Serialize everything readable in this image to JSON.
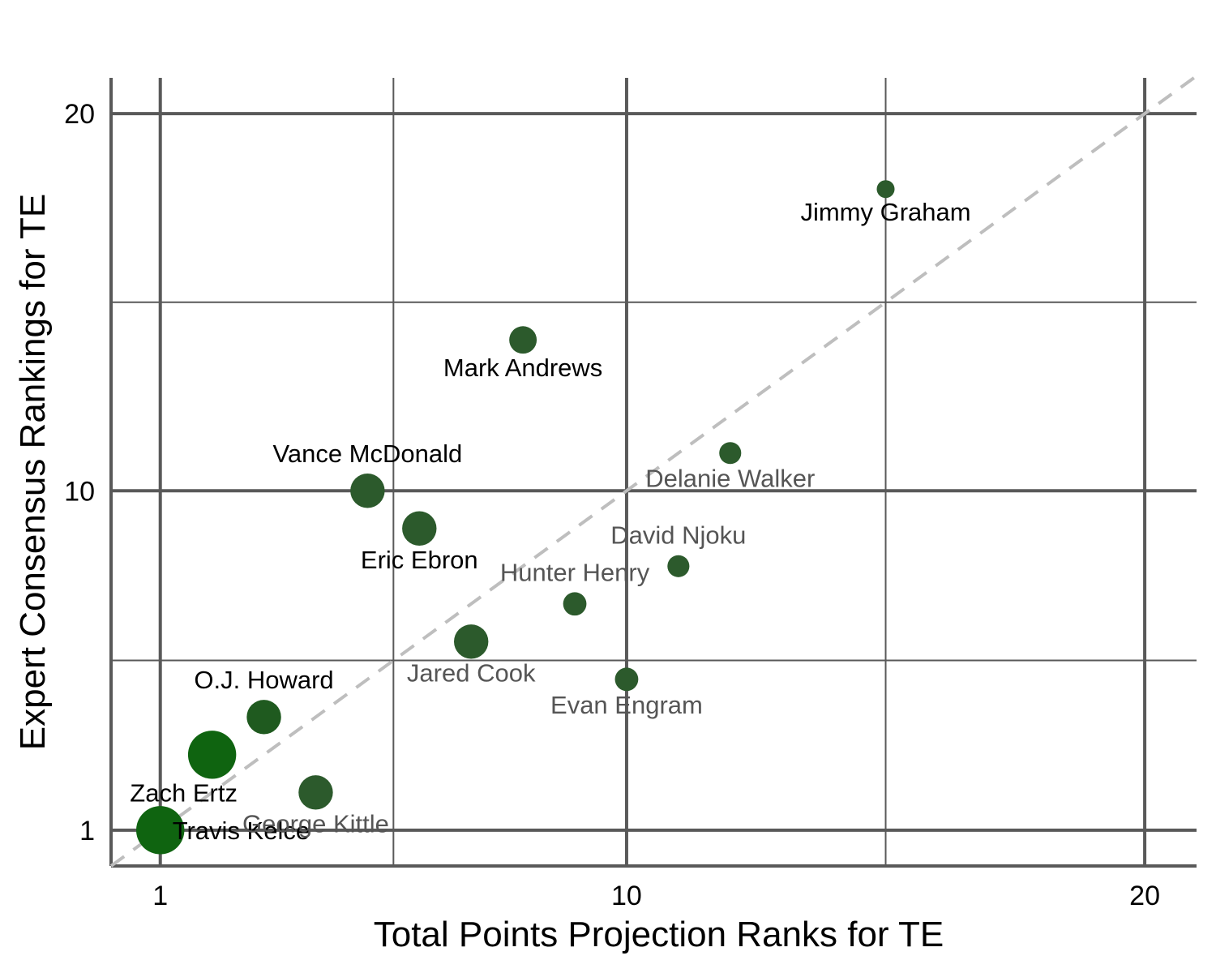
{
  "chart_data": {
    "type": "scatter",
    "xlabel": "Total Points Projection Ranks for TE",
    "ylabel": "Expert Consensus Rankings for TE",
    "xlim": [
      0.05,
      21.0
    ],
    "ylim": [
      0.05,
      20.95
    ],
    "x_ticks": [
      {
        "value": 1,
        "label": "1"
      },
      {
        "value": 10,
        "label": "10"
      },
      {
        "value": 20,
        "label": "20"
      }
    ],
    "y_ticks": [
      {
        "value": 1,
        "label": "1"
      },
      {
        "value": 10,
        "label": "10"
      },
      {
        "value": 20,
        "label": "20"
      }
    ],
    "x_minor_grid": [
      5.5,
      15
    ],
    "y_minor_grid": [
      5.5,
      15
    ],
    "reference_line": {
      "style": "dashed",
      "color": "#bebebe",
      "slope": 1,
      "intercept": 0
    },
    "grid": true,
    "colors": {
      "axis": "#595959",
      "dark_label": "#000000",
      "light_label": "#555555"
    },
    "points": [
      {
        "name": "Travis Kelce",
        "x": 1,
        "y": 1,
        "size": 3,
        "color": "#0f6410",
        "label_color": "dark",
        "label_side": "right"
      },
      {
        "name": "Zach Ertz",
        "x": 2,
        "y": 3,
        "size": 3,
        "color": "#0f6410",
        "label_color": "dark",
        "label_side": "below-left"
      },
      {
        "name": "O.J. Howard",
        "x": 3,
        "y": 4,
        "size": 2,
        "color": "#1f5a1f",
        "label_color": "dark",
        "label_side": "above"
      },
      {
        "name": "George Kittle",
        "x": 4,
        "y": 2,
        "size": 2,
        "color": "#2c5a2c",
        "label_color": "light",
        "label_side": "below"
      },
      {
        "name": "Vance McDonald",
        "x": 5,
        "y": 10,
        "size": 2,
        "color": "#2c5a2c",
        "label_color": "dark",
        "label_side": "above"
      },
      {
        "name": "Eric Ebron",
        "x": 6,
        "y": 9,
        "size": 2,
        "color": "#2c5a2c",
        "label_color": "dark",
        "label_side": "below"
      },
      {
        "name": "Jared Cook",
        "x": 7,
        "y": 6,
        "size": 2,
        "color": "#2c5a2c",
        "label_color": "light",
        "label_side": "below"
      },
      {
        "name": "Mark Andrews",
        "x": 8,
        "y": 14,
        "size": 1.5,
        "color": "#2c5a2c",
        "label_color": "dark",
        "label_side": "below"
      },
      {
        "name": "Hunter Henry",
        "x": 9,
        "y": 7,
        "size": 1.2,
        "color": "#2c5a2c",
        "label_color": "light",
        "label_side": "above"
      },
      {
        "name": "Evan Engram",
        "x": 10,
        "y": 5,
        "size": 1.2,
        "color": "#2c5a2c",
        "label_color": "light",
        "label_side": "below"
      },
      {
        "name": "David Njoku",
        "x": 11,
        "y": 8,
        "size": 1.1,
        "color": "#2c5a2c",
        "label_color": "light",
        "label_side": "above"
      },
      {
        "name": "Delanie Walker",
        "x": 12,
        "y": 11,
        "size": 1.1,
        "color": "#2c5a2c",
        "label_color": "light",
        "label_side": "below"
      },
      {
        "name": "Jimmy Graham",
        "x": 15,
        "y": 18,
        "size": 0.8,
        "color": "#2c5a2c",
        "label_color": "dark",
        "label_side": "below"
      }
    ]
  }
}
